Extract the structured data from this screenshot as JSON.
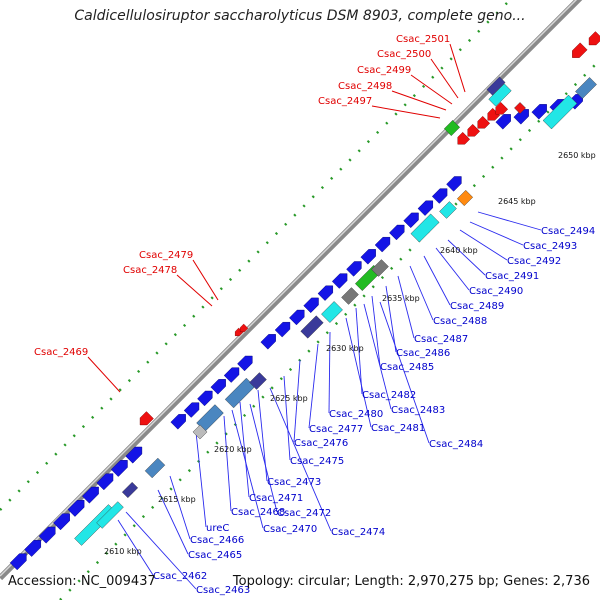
{
  "title": "Caldicellulosiruptor saccharolyticus DSM 8903, complete geno...",
  "footer": {
    "accession": "Accession: NC_009437",
    "topology": "Topology: circular; Length: 2,970,275 bp; Genes: 2,736"
  },
  "colors": {
    "backbone": "#8a8a8a",
    "dots": "#2a9a2a",
    "forward_gene": "#1414e6",
    "red_gene": "#ee1111",
    "red_label": "#e00000",
    "blue_label": "#0000cc",
    "cyan_gene": "#22e6e6",
    "steelblue_gene": "#4a86c0",
    "navy_gene": "#3a3a9a",
    "green_gene": "#22bb22",
    "orange_gene": "#ff8a10",
    "gray_gene": "#777777"
  },
  "scale_labels": [
    "2610 kbp",
    "2615 kbp",
    "2620 kbp",
    "2625 kbp",
    "2630 kbp",
    "2635 kbp",
    "2640 kbp",
    "2645 kbp",
    "2650 kbp"
  ],
  "red_labels": [
    "Csac_2501",
    "Csac_2500",
    "Csac_2499",
    "Csac_2498",
    "Csac_2497",
    "Csac_2479",
    "Csac_2478",
    "Csac_2469"
  ],
  "blue_labels": [
    "Csac_2494",
    "Csac_2493",
    "Csac_2492",
    "Csac_2491",
    "Csac_2490",
    "Csac_2489",
    "Csac_2488",
    "Csac_2487",
    "Csac_2486",
    "Csac_2485",
    "Csac_2482",
    "Csac_2483",
    "Csac_2481",
    "Csac_2484",
    "Csac_2480",
    "Csac_2477",
    "Csac_2476",
    "Csac_2475",
    "Csac_2473",
    "Csac_2471",
    "Csac_2472",
    "Csac_2468",
    "Csac_2470",
    "Csac_2474",
    "ureC",
    "Csac_2466",
    "Csac_2465",
    "Csac_2462",
    "Csac_2463"
  ]
}
